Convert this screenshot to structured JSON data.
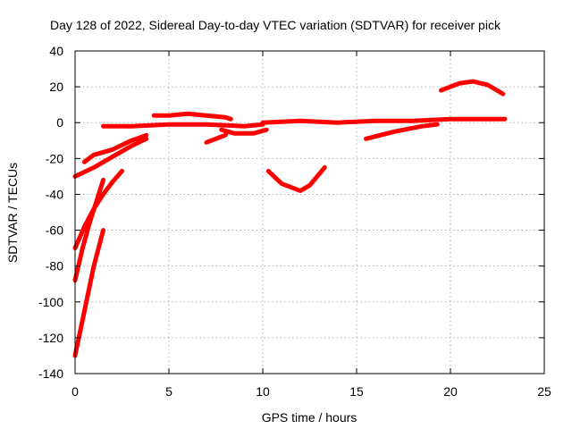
{
  "chart_data": {
    "type": "line",
    "title": "Day 128 of 2022, Sidereal Day-to-day VTEC variation (SDTVAR) for receiver pick",
    "xlabel": "GPS time / hours",
    "ylabel": "SDTVAR / TECUs",
    "xlim": [
      0,
      25
    ],
    "ylim": [
      -140,
      40
    ],
    "xticks": [
      "0",
      "5",
      "10",
      "15",
      "20",
      "25"
    ],
    "yticks": [
      "-140",
      "-120",
      "-100",
      "-80",
      "-60",
      "-40",
      "-20",
      "0",
      "20",
      "40"
    ],
    "grid": true,
    "series_color": "#ff0000",
    "series": [
      {
        "x": [
          0.0,
          0.5,
          1.0,
          1.5
        ],
        "y": [
          -130,
          -105,
          -80,
          -60
        ]
      },
      {
        "x": [
          0.0,
          0.4,
          0.8,
          1.2,
          1.5
        ],
        "y": [
          -88,
          -70,
          -55,
          -42,
          -32
        ]
      },
      {
        "x": [
          0.0,
          0.5,
          1.0,
          1.5,
          2.0,
          2.5
        ],
        "y": [
          -70,
          -58,
          -48,
          -40,
          -33,
          -27
        ]
      },
      {
        "x": [
          0.0,
          1.0,
          2.0,
          3.0,
          3.8
        ],
        "y": [
          -30,
          -25,
          -19,
          -13,
          -9
        ]
      },
      {
        "x": [
          0.5,
          1.0,
          2.0,
          3.0,
          3.8
        ],
        "y": [
          -22,
          -18,
          -15,
          -10,
          -7
        ]
      },
      {
        "x": [
          1.5,
          3.0,
          5.0,
          7.0,
          9.0,
          10.0
        ],
        "y": [
          -2,
          -2,
          -1,
          -1,
          -2,
          -1
        ]
      },
      {
        "x": [
          4.2,
          5.0,
          6.0,
          7.0,
          8.0,
          8.3
        ],
        "y": [
          4,
          4,
          5,
          4,
          3,
          2
        ]
      },
      {
        "x": [
          7.0,
          7.5,
          8.0,
          8.1
        ],
        "y": [
          -11,
          -9,
          -7,
          -5
        ]
      },
      {
        "x": [
          7.8,
          8.5,
          9.5,
          10.2
        ],
        "y": [
          -4,
          -6,
          -6,
          -4
        ]
      },
      {
        "x": [
          10.3,
          11.0,
          12.0,
          12.5,
          13.3
        ],
        "y": [
          -27,
          -34,
          -38,
          -35,
          -25
        ]
      },
      {
        "x": [
          10.0,
          12.0,
          14.0,
          16.0,
          18.0,
          20.0,
          22.0,
          22.9
        ],
        "y": [
          0,
          1,
          0,
          1,
          1,
          2,
          2,
          2
        ]
      },
      {
        "x": [
          15.5,
          17.0,
          18.5,
          19.3
        ],
        "y": [
          -9,
          -5,
          -2,
          -1
        ]
      },
      {
        "x": [
          19.5,
          20.5,
          21.2,
          22.0,
          22.8
        ],
        "y": [
          18,
          22,
          23,
          21,
          16
        ]
      }
    ]
  }
}
